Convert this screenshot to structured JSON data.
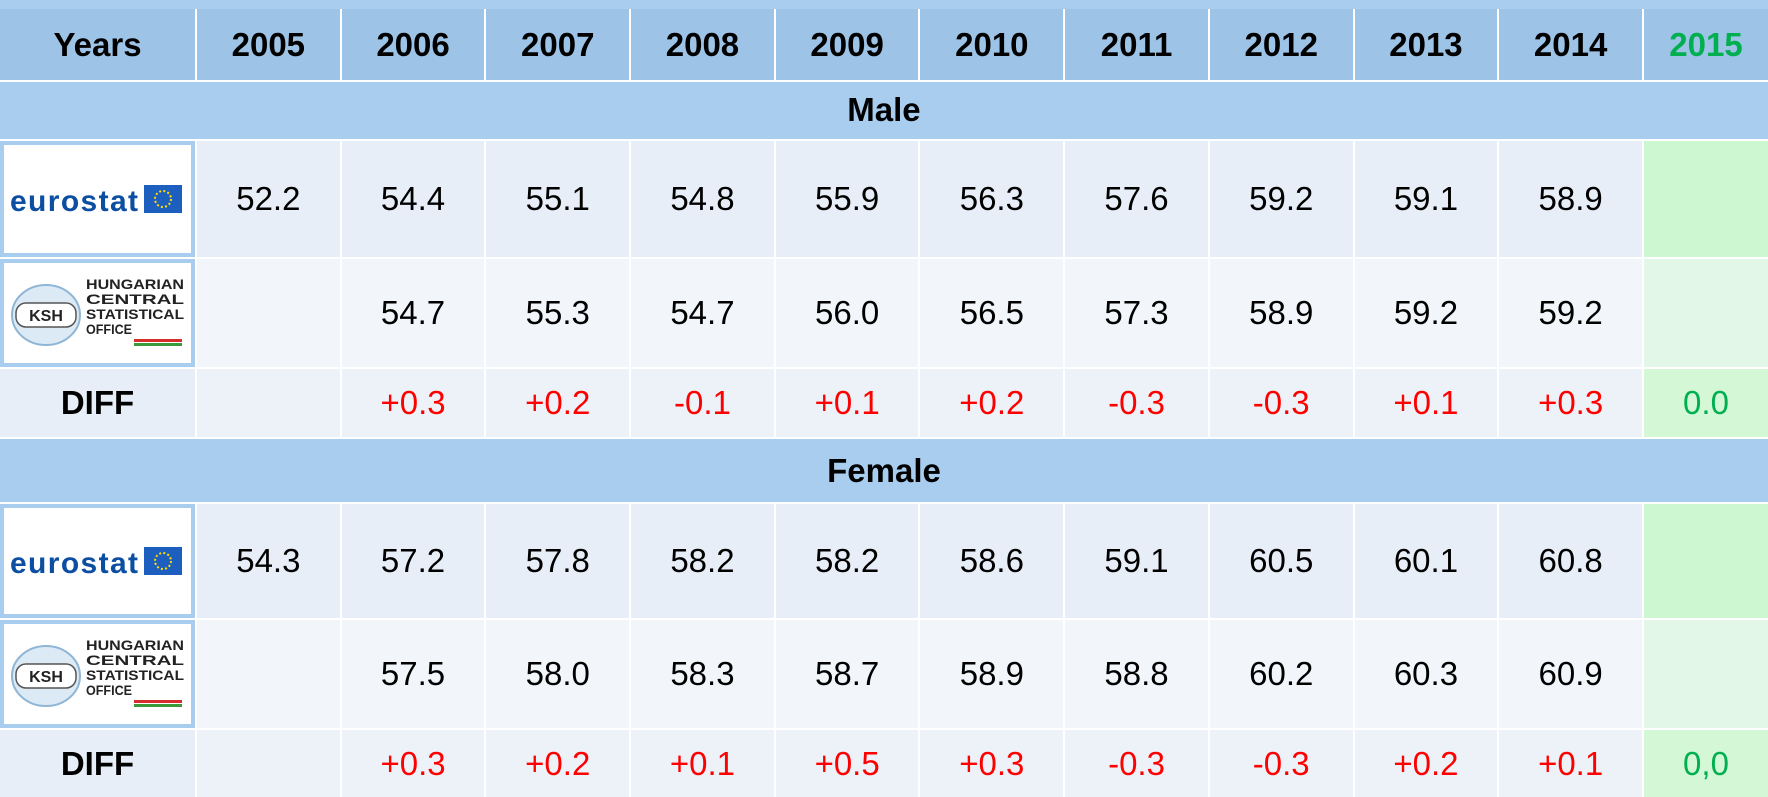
{
  "header": {
    "label": "Years",
    "years": [
      "2005",
      "2006",
      "2007",
      "2008",
      "2009",
      "2010",
      "2011",
      "2012",
      "2013",
      "2014",
      "2015"
    ]
  },
  "sections": [
    {
      "title": "Male",
      "rows": [
        {
          "logo": {
            "name": "eurostat"
          },
          "values": [
            "52.2",
            "54.4",
            "55.1",
            "54.8",
            "55.9",
            "56.3",
            "57.6",
            "59.2",
            "59.1",
            "58.9",
            null
          ]
        },
        {
          "logo": {
            "abbr": "KSH",
            "lines": [
              "HUNGARIAN",
              "CENTRAL",
              "STATISTICAL",
              "OFFICE"
            ]
          },
          "values": [
            null,
            "54.7",
            "55.3",
            "54.7",
            "56.0",
            "56.5",
            "57.3",
            "58.9",
            "59.2",
            "59.2",
            null
          ]
        },
        {
          "label": "DIFF",
          "values": [
            null,
            "+0.3",
            "+0.2",
            "-0.1",
            "+0.1",
            "+0.2",
            "-0.3",
            "-0.3",
            "+0.1",
            "+0.3",
            "0.0"
          ]
        }
      ]
    },
    {
      "title": "Female",
      "rows": [
        {
          "logo": {
            "name": "eurostat"
          },
          "values": [
            "54.3",
            "57.2",
            "57.8",
            "58.2",
            "58.2",
            "58.6",
            "59.1",
            "60.5",
            "60.1",
            "60.8",
            null
          ]
        },
        {
          "logo": {
            "abbr": "KSH",
            "lines": [
              "HUNGARIAN",
              "CENTRAL",
              "STATISTICAL",
              "OFFICE"
            ]
          },
          "values": [
            null,
            "57.5",
            "58.0",
            "58.3",
            "58.7",
            "58.9",
            "58.8",
            "60.2",
            "60.3",
            "60.9",
            null
          ]
        },
        {
          "label": "DIFF",
          "values": [
            null,
            "+0.3",
            "+0.2",
            "+0.1",
            "+0.5",
            "+0.3",
            "-0.3",
            "-0.3",
            "+0.2",
            "+0.1",
            "0,0"
          ]
        }
      ]
    }
  ]
}
